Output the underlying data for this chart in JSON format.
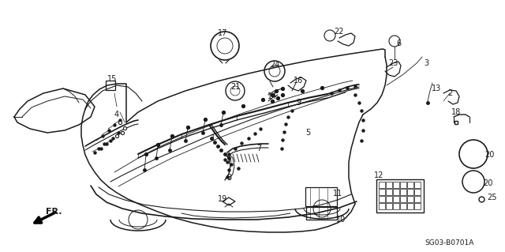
{
  "bg_color": "#ffffff",
  "line_color": "#1a1a1a",
  "diagram_code": "SG03-B0701A",
  "fr_label": "FR.",
  "figsize": [
    6.4,
    3.19
  ],
  "dpi": 100
}
